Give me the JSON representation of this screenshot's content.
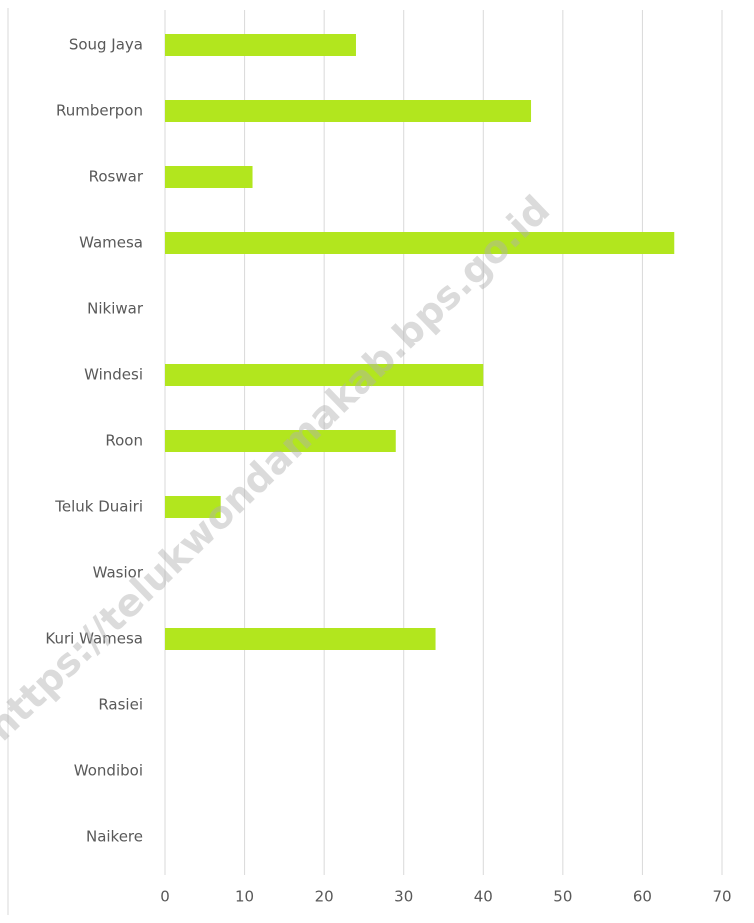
{
  "chart_data": {
    "type": "bar",
    "orientation": "horizontal",
    "categories": [
      "Soug Jaya",
      "Rumberpon",
      "Roswar",
      "Wamesa",
      "Nikiwar",
      "Windesi",
      "Roon",
      "Teluk Duairi",
      "Wasior",
      "Kuri Wamesa",
      "Rasiei",
      "Wondiboi",
      "Naikere"
    ],
    "values": [
      24,
      46,
      11,
      64,
      0,
      40,
      29,
      7,
      0,
      34,
      0,
      0,
      0
    ],
    "color": "#b2e61e",
    "xlim": [
      0,
      70
    ],
    "xticks": [
      0,
      10,
      20,
      30,
      40,
      50,
      60,
      70
    ],
    "grid": true,
    "watermark": "https://telukwondamakab.bps.go.id"
  }
}
